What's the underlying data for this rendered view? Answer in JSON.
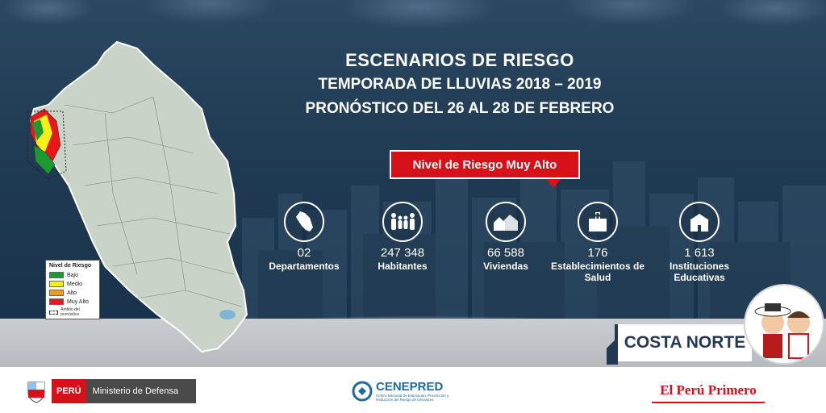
{
  "header": {
    "title": "ESCENARIOS DE RIESGO",
    "subtitle": "TEMPORADA DE LLUVIAS 2018 – 2019",
    "forecast": "PRONÓSTICO DEL 26 AL 28 DE FEBRERO"
  },
  "risk_level": "Nivel de Riesgo Muy Alto",
  "legend": {
    "title": "Nivel de Riesgo",
    "items": [
      {
        "label": "Bajo",
        "color": "#1a9a2f"
      },
      {
        "label": "Medio",
        "color": "#f3f01a"
      },
      {
        "label": "Alto",
        "color": "#f39a1a"
      },
      {
        "label": "Muy Alto",
        "color": "#e8171b"
      }
    ],
    "note": "Ámbito del pronóstico"
  },
  "stats": [
    {
      "value": "02",
      "label": "Departamentos",
      "icon": "peru-map-icon"
    },
    {
      "value": "247 348",
      "label": "Habitantes",
      "icon": "family-icon"
    },
    {
      "value": "66 588",
      "label": "Viviendas",
      "icon": "houses-icon"
    },
    {
      "value": "176",
      "label": "Establecimientos de Salud",
      "icon": "hospital-icon"
    },
    {
      "value": "1 613",
      "label": "Instituciones Educativas",
      "icon": "school-icon"
    }
  ],
  "zone": "COSTA NORTE",
  "footer": {
    "peru": "PERÚ",
    "ministry": "Ministerio de Defensa",
    "cenepred_name": "CENEPRED",
    "cenepred_line1": "Centro Nacional de Estimación, Prevención y",
    "cenepred_line2": "Reducción del Riesgo de Desastres",
    "slogan": "El Perú Primero"
  },
  "colors": {
    "background": "#1f3a52",
    "accent_red": "#d7111a",
    "cenepred_blue": "#1d6aa5"
  }
}
